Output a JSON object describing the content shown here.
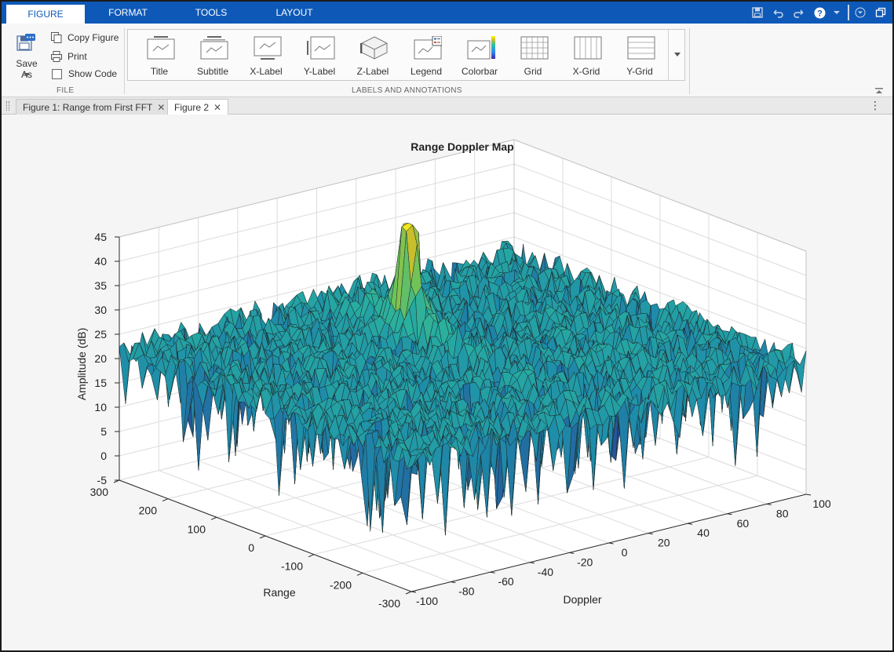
{
  "tabs": [
    {
      "label": "FIGURE",
      "active": true
    },
    {
      "label": "FORMAT",
      "active": false
    },
    {
      "label": "TOOLS",
      "active": false
    },
    {
      "label": "LAYOUT",
      "active": false
    }
  ],
  "quick_access": [
    "save-icon",
    "undo-icon",
    "redo-icon",
    "help-icon",
    "dropdown-icon",
    "collapse-icon",
    "restore-icon"
  ],
  "file_section": {
    "save_as": "Save As",
    "copy_figure": "Copy Figure",
    "print": "Print",
    "show_code": "Show Code",
    "label": "FILE"
  },
  "labels_section": {
    "items": [
      "Title",
      "Subtitle",
      "X-Label",
      "Y-Label",
      "Z-Label",
      "Legend",
      "Colorbar",
      "Grid",
      "X-Grid",
      "Y-Grid"
    ],
    "label": "LABELS AND ANNOTATIONS"
  },
  "doc_tabs": [
    {
      "label": "Figure 1: Range from First FFT",
      "active": false
    },
    {
      "label": "Figure 2",
      "active": true
    }
  ],
  "chart_data": {
    "type": "surface",
    "title": "Range Doppler Map",
    "xlabel": "Doppler",
    "ylabel": "Range",
    "zlabel": "Amplitude (dB)",
    "xlim": [
      -100,
      100
    ],
    "ylim": [
      -300,
      300
    ],
    "zlim": [
      -5,
      45
    ],
    "x_ticks": [
      -100,
      -80,
      -60,
      -40,
      -20,
      0,
      20,
      40,
      60,
      80,
      100
    ],
    "y_ticks": [
      -300,
      -200,
      -100,
      0,
      100,
      200,
      300
    ],
    "z_ticks": [
      -5,
      0,
      5,
      10,
      15,
      20,
      25,
      30,
      35,
      40,
      45
    ],
    "grid": true,
    "noise_floor_db": 22,
    "peak": {
      "doppler": 0,
      "range": 110,
      "amplitude_db": 45
    }
  }
}
